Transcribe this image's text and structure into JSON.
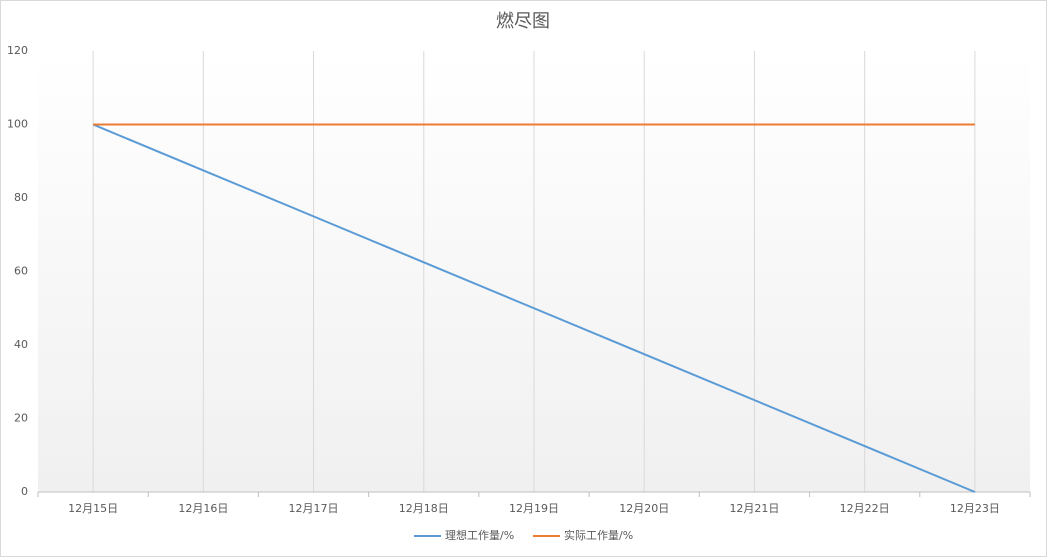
{
  "chart_data": {
    "type": "line",
    "title": "燃尽图",
    "categories": [
      "12月15日",
      "12月16日",
      "12月17日",
      "12月18日",
      "12月19日",
      "12月20日",
      "12月21日",
      "12月22日",
      "12月23日"
    ],
    "series": [
      {
        "name": "理想工作量/%",
        "color": "#5b9bd5",
        "values": [
          100,
          87.5,
          75,
          62.5,
          50,
          37.5,
          25,
          12.5,
          0
        ]
      },
      {
        "name": "实际工作量/%",
        "color": "#ed7d31",
        "values": [
          100,
          100,
          100,
          100,
          100,
          100,
          100,
          100,
          100
        ]
      }
    ],
    "ylim": [
      0,
      120
    ],
    "yticks": [
      0,
      20,
      40,
      60,
      80,
      100,
      120
    ],
    "grid": true,
    "legend": "bottom"
  }
}
